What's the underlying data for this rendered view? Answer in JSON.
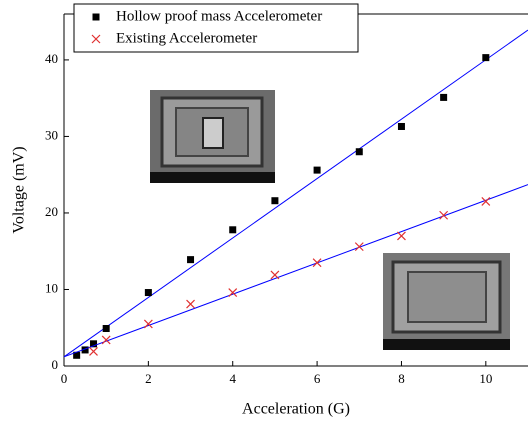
{
  "chart_data": {
    "type": "scatter",
    "x_label": "Acceleration  (G)",
    "y_label": "Voltage  (mV)",
    "xlim": [
      0,
      11
    ],
    "xticks": [
      0,
      2,
      4,
      6,
      8,
      10
    ],
    "ylim": [
      0,
      46
    ],
    "yticks": [
      0,
      10,
      20,
      30,
      40
    ],
    "legend": "top-left",
    "series": [
      {
        "name": "Hollow proof mass Accelerometer",
        "color": "#000000",
        "marker": "square",
        "x": [
          0.3,
          0.5,
          0.7,
          1,
          2,
          3,
          4,
          5,
          6,
          7,
          8,
          9,
          10
        ],
        "values": [
          1.4,
          2.1,
          2.9,
          4.9,
          9.6,
          13.9,
          17.8,
          21.6,
          25.6,
          28,
          31.3,
          35.1,
          40.3
        ],
        "fit": {
          "color": "#0000ff",
          "x": [
            0,
            11
          ],
          "values": [
            1.2,
            43.9
          ]
        }
      },
      {
        "name": "Existing Accelerometer",
        "color": "#e03030",
        "marker": "cross",
        "x": [
          0.7,
          1,
          2,
          3,
          4,
          5,
          6,
          7,
          8,
          9,
          10
        ],
        "values": [
          1.9,
          3.4,
          5.5,
          8.1,
          9.6,
          11.9,
          13.5,
          15.6,
          17,
          19.7,
          21.5
        ],
        "fit": {
          "color": "#0000ff",
          "x": [
            0,
            11
          ],
          "values": [
            1.2,
            23.7
          ]
        }
      }
    ]
  }
}
